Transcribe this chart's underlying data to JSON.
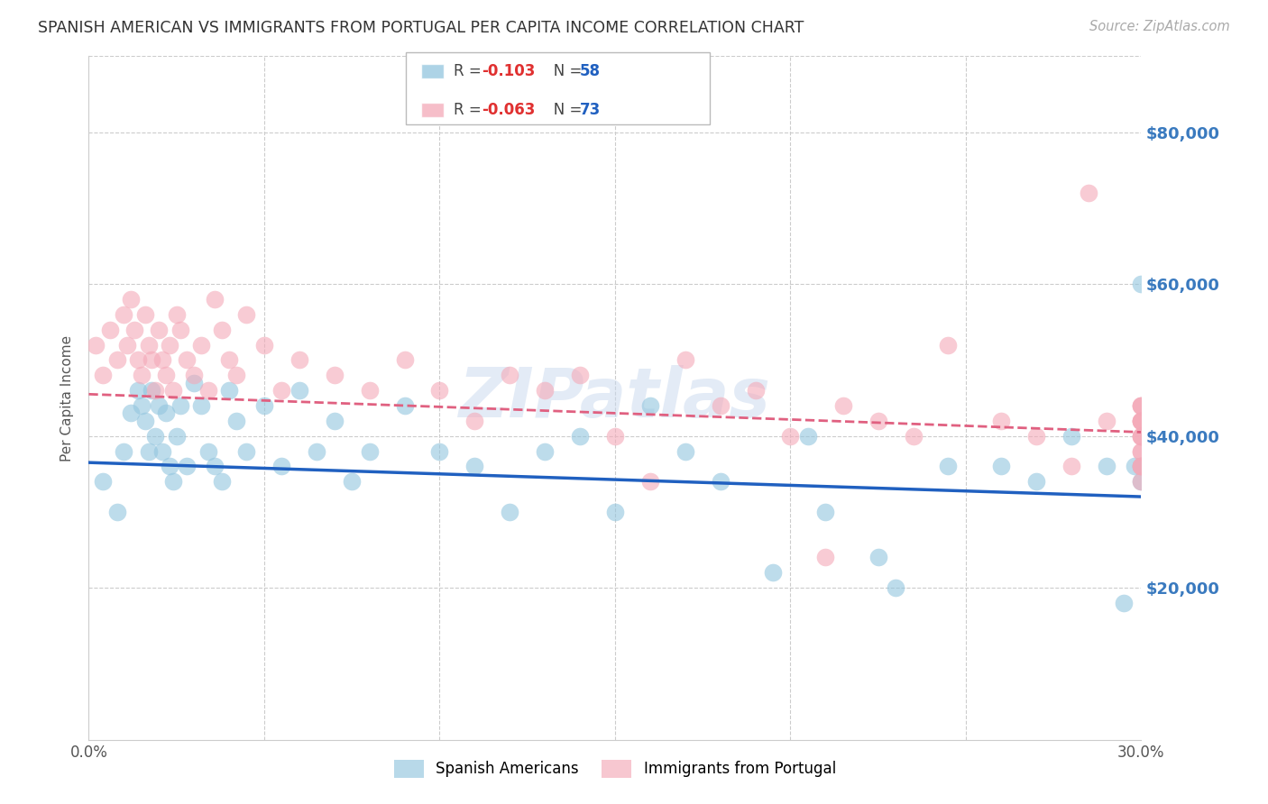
{
  "title": "SPANISH AMERICAN VS IMMIGRANTS FROM PORTUGAL PER CAPITA INCOME CORRELATION CHART",
  "source": "Source: ZipAtlas.com",
  "ylabel": "Per Capita Income",
  "yticks": [
    20000,
    40000,
    60000,
    80000
  ],
  "ytick_labels": [
    "$20,000",
    "$40,000",
    "$60,000",
    "$80,000"
  ],
  "legend_label_blue": "Spanish Americans",
  "legend_label_pink": "Immigrants from Portugal",
  "blue_color": "#92c5de",
  "pink_color": "#f4a9b8",
  "blue_line_color": "#2060c0",
  "pink_line_color": "#e06080",
  "watermark": "ZIPatlas",
  "blue_scatter_x": [
    0.4,
    0.8,
    1.0,
    1.2,
    1.4,
    1.5,
    1.6,
    1.7,
    1.8,
    1.9,
    2.0,
    2.1,
    2.2,
    2.3,
    2.4,
    2.5,
    2.6,
    2.8,
    3.0,
    3.2,
    3.4,
    3.6,
    3.8,
    4.0,
    4.2,
    4.5,
    5.0,
    5.5,
    6.0,
    6.5,
    7.0,
    7.5,
    8.0,
    9.0,
    10.0,
    11.0,
    12.0,
    13.0,
    14.0,
    15.0,
    16.0,
    17.0,
    18.0,
    19.5,
    20.5,
    21.0,
    22.5,
    23.0,
    24.5,
    26.0,
    27.0,
    28.0,
    29.0,
    29.5,
    29.8,
    30.0,
    30.0,
    30.0
  ],
  "blue_scatter_y": [
    34000,
    30000,
    38000,
    43000,
    46000,
    44000,
    42000,
    38000,
    46000,
    40000,
    44000,
    38000,
    43000,
    36000,
    34000,
    40000,
    44000,
    36000,
    47000,
    44000,
    38000,
    36000,
    34000,
    46000,
    42000,
    38000,
    44000,
    36000,
    46000,
    38000,
    42000,
    34000,
    38000,
    44000,
    38000,
    36000,
    30000,
    38000,
    40000,
    30000,
    44000,
    38000,
    34000,
    22000,
    40000,
    30000,
    24000,
    20000,
    36000,
    36000,
    34000,
    40000,
    36000,
    18000,
    36000,
    34000,
    60000,
    36000
  ],
  "pink_scatter_x": [
    0.2,
    0.4,
    0.6,
    0.8,
    1.0,
    1.1,
    1.2,
    1.3,
    1.4,
    1.5,
    1.6,
    1.7,
    1.8,
    1.9,
    2.0,
    2.1,
    2.2,
    2.3,
    2.4,
    2.5,
    2.6,
    2.8,
    3.0,
    3.2,
    3.4,
    3.6,
    3.8,
    4.0,
    4.2,
    4.5,
    5.0,
    5.5,
    6.0,
    7.0,
    8.0,
    9.0,
    10.0,
    11.0,
    12.0,
    13.0,
    14.0,
    15.0,
    16.0,
    17.0,
    18.0,
    19.0,
    20.0,
    21.0,
    21.5,
    22.5,
    23.5,
    24.5,
    26.0,
    27.0,
    28.0,
    28.5,
    29.0,
    30.0,
    30.0,
    30.0,
    30.0,
    30.0,
    30.0,
    30.0,
    30.0,
    30.0,
    30.0,
    30.0,
    30.0,
    30.0,
    30.0,
    30.0,
    30.0
  ],
  "pink_scatter_y": [
    52000,
    48000,
    54000,
    50000,
    56000,
    52000,
    58000,
    54000,
    50000,
    48000,
    56000,
    52000,
    50000,
    46000,
    54000,
    50000,
    48000,
    52000,
    46000,
    56000,
    54000,
    50000,
    48000,
    52000,
    46000,
    58000,
    54000,
    50000,
    48000,
    56000,
    52000,
    46000,
    50000,
    48000,
    46000,
    50000,
    46000,
    42000,
    48000,
    46000,
    48000,
    40000,
    34000,
    50000,
    44000,
    46000,
    40000,
    24000,
    44000,
    42000,
    40000,
    52000,
    42000,
    40000,
    36000,
    72000,
    42000,
    44000,
    42000,
    42000,
    40000,
    36000,
    44000,
    42000,
    36000,
    40000,
    38000,
    44000,
    42000,
    40000,
    38000,
    36000,
    34000
  ],
  "xlim": [
    0,
    30
  ],
  "ylim": [
    0,
    90000
  ],
  "blue_trend_x": [
    0,
    30
  ],
  "blue_trend_y": [
    36500,
    32000
  ],
  "pink_trend_x": [
    0,
    30
  ],
  "pink_trend_y": [
    45500,
    40500
  ]
}
